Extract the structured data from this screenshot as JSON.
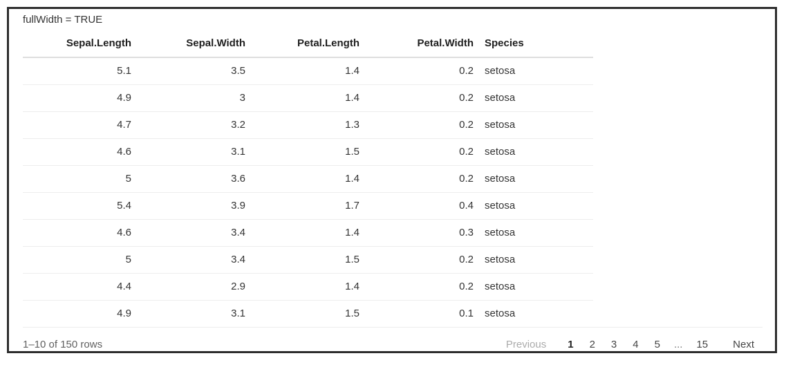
{
  "label": "fullWidth = TRUE",
  "table": {
    "columns": [
      {
        "label": "Sepal.Length",
        "align": "right"
      },
      {
        "label": "Sepal.Width",
        "align": "right"
      },
      {
        "label": "Petal.Length",
        "align": "right"
      },
      {
        "label": "Petal.Width",
        "align": "right"
      },
      {
        "label": "Species",
        "align": "left"
      }
    ],
    "rows": [
      [
        "5.1",
        "3.5",
        "1.4",
        "0.2",
        "setosa"
      ],
      [
        "4.9",
        "3",
        "1.4",
        "0.2",
        "setosa"
      ],
      [
        "4.7",
        "3.2",
        "1.3",
        "0.2",
        "setosa"
      ],
      [
        "4.6",
        "3.1",
        "1.5",
        "0.2",
        "setosa"
      ],
      [
        "5",
        "3.6",
        "1.4",
        "0.2",
        "setosa"
      ],
      [
        "5.4",
        "3.9",
        "1.7",
        "0.4",
        "setosa"
      ],
      [
        "4.6",
        "3.4",
        "1.4",
        "0.3",
        "setosa"
      ],
      [
        "5",
        "3.4",
        "1.5",
        "0.2",
        "setosa"
      ],
      [
        "4.4",
        "2.9",
        "1.4",
        "0.2",
        "setosa"
      ],
      [
        "4.9",
        "3.1",
        "1.5",
        "0.1",
        "setosa"
      ]
    ]
  },
  "footer": {
    "page_info": "1–10 of 150 rows",
    "pagination": {
      "previous_label": "Previous",
      "pages": [
        "1",
        "2",
        "3",
        "4",
        "5",
        "...",
        "15"
      ],
      "current_page": "1",
      "next_label": "Next"
    }
  },
  "colors": {
    "frame_border": "#2d2d2d",
    "header_text": "#1f1f1f",
    "cell_text": "#333333",
    "header_rule": "#dedede",
    "row_rule": "#ededed",
    "page_info_text": "#606060",
    "page_button_text": "#444444",
    "disabled_button_text": "#ababab",
    "current_page_text": "#222222"
  }
}
